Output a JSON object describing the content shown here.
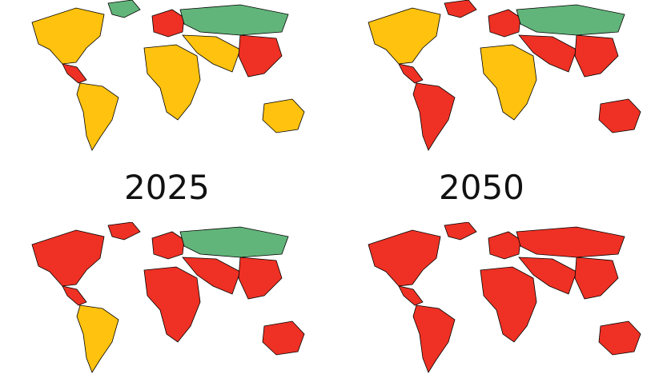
{
  "labels": {
    "left_year": "2025",
    "right_year": "2050"
  },
  "legend_colors": {
    "high": "#ee3124",
    "medium": "#ffc20e",
    "low": "#62b57a"
  },
  "maps": [
    {
      "id": "top-left",
      "palette": [
        "#ffc20e",
        "#62b57a",
        "#ee3124",
        "#ffc20e",
        "#ee3124",
        "#62b57a",
        "#ffc20e",
        "#ffc20e",
        "#ee3124",
        "#ffc20e"
      ]
    },
    {
      "id": "top-right",
      "palette": [
        "#ffc20e",
        "#ee3124",
        "#ee3124",
        "#ee3124",
        "#ee3124",
        "#62b57a",
        "#ee3124",
        "#ffc20e",
        "#ee3124",
        "#ee3124"
      ]
    },
    {
      "id": "bot-left",
      "palette": [
        "#ee3124",
        "#ee3124",
        "#ee3124",
        "#ffc20e",
        "#ee3124",
        "#62b57a",
        "#ee3124",
        "#ee3124",
        "#ee3124",
        "#ee3124"
      ]
    },
    {
      "id": "bot-right",
      "palette": [
        "#ee3124",
        "#ee3124",
        "#ee3124",
        "#ee3124",
        "#ee3124",
        "#ee3124",
        "#ee3124",
        "#ee3124",
        "#ee3124",
        "#ee3124"
      ]
    }
  ]
}
